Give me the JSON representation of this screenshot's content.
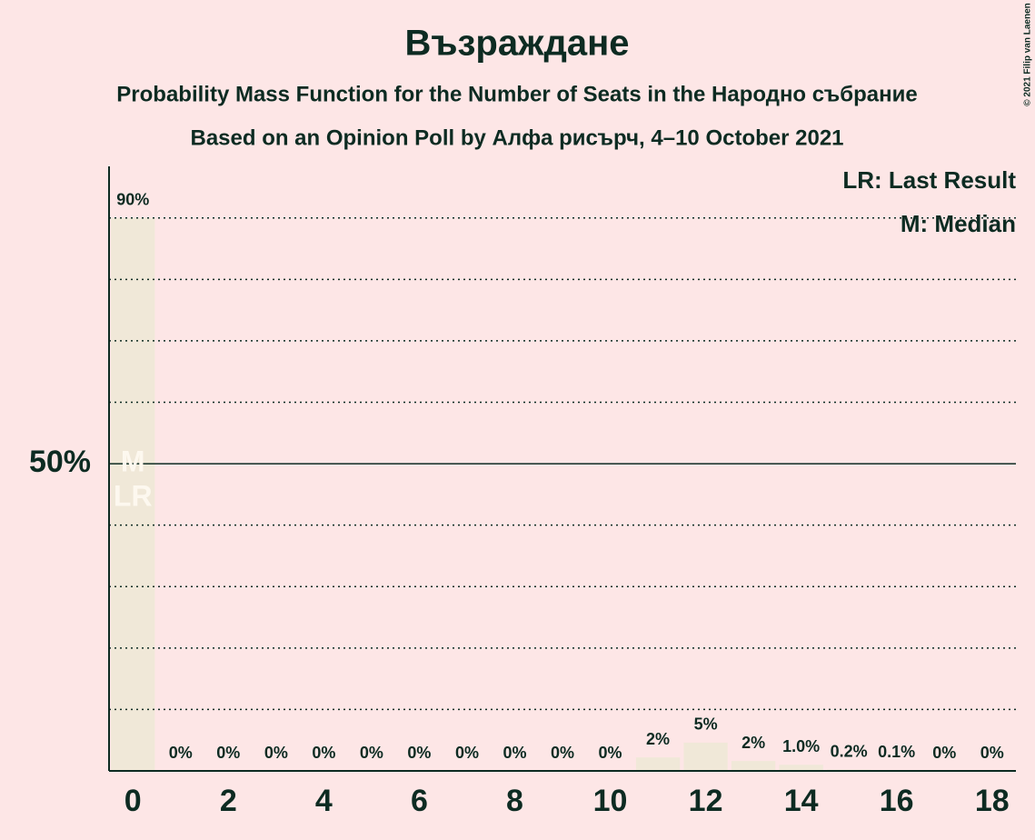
{
  "chart_data": {
    "type": "bar",
    "title": "Възраждане",
    "subtitle": "Probability Mass Function for the Number of Seats in the Народно събрание",
    "subtitle2": "Based on an Opinion Poll by Алфа рисърч, 4–10 October 2021",
    "x": [
      0,
      1,
      2,
      3,
      4,
      5,
      6,
      7,
      8,
      9,
      10,
      11,
      12,
      13,
      14,
      15,
      16,
      17,
      18
    ],
    "values": [
      90,
      0,
      0,
      0,
      0,
      0,
      0,
      0,
      0,
      0,
      0,
      2.2,
      4.6,
      1.6,
      1.0,
      0.2,
      0.1,
      0,
      0
    ],
    "value_labels": [
      "90%",
      "0%",
      "0%",
      "0%",
      "0%",
      "0%",
      "0%",
      "0%",
      "0%",
      "0%",
      "0%",
      "2%",
      "5%",
      "2%",
      "1.0%",
      "0.2%",
      "0.1%",
      "0%",
      "0%"
    ],
    "color": "#f0e8d8",
    "xlim": [
      -0.5,
      18.5
    ],
    "xticks": [
      0,
      2,
      4,
      6,
      8,
      10,
      12,
      14,
      16,
      18
    ],
    "ylim": [
      0,
      98.4
    ],
    "yticks": [
      {
        "value": 50,
        "label": "50%"
      }
    ],
    "grid_lines": [
      10,
      20,
      30,
      40,
      60,
      70,
      80,
      90
    ],
    "bar_annotations": [
      {
        "index": 0,
        "texts": [
          "M",
          "LR"
        ]
      }
    ],
    "legend": [
      "LR: Last Result",
      "M: Median"
    ],
    "copyright": "© 2021 Filip van Laenen"
  }
}
